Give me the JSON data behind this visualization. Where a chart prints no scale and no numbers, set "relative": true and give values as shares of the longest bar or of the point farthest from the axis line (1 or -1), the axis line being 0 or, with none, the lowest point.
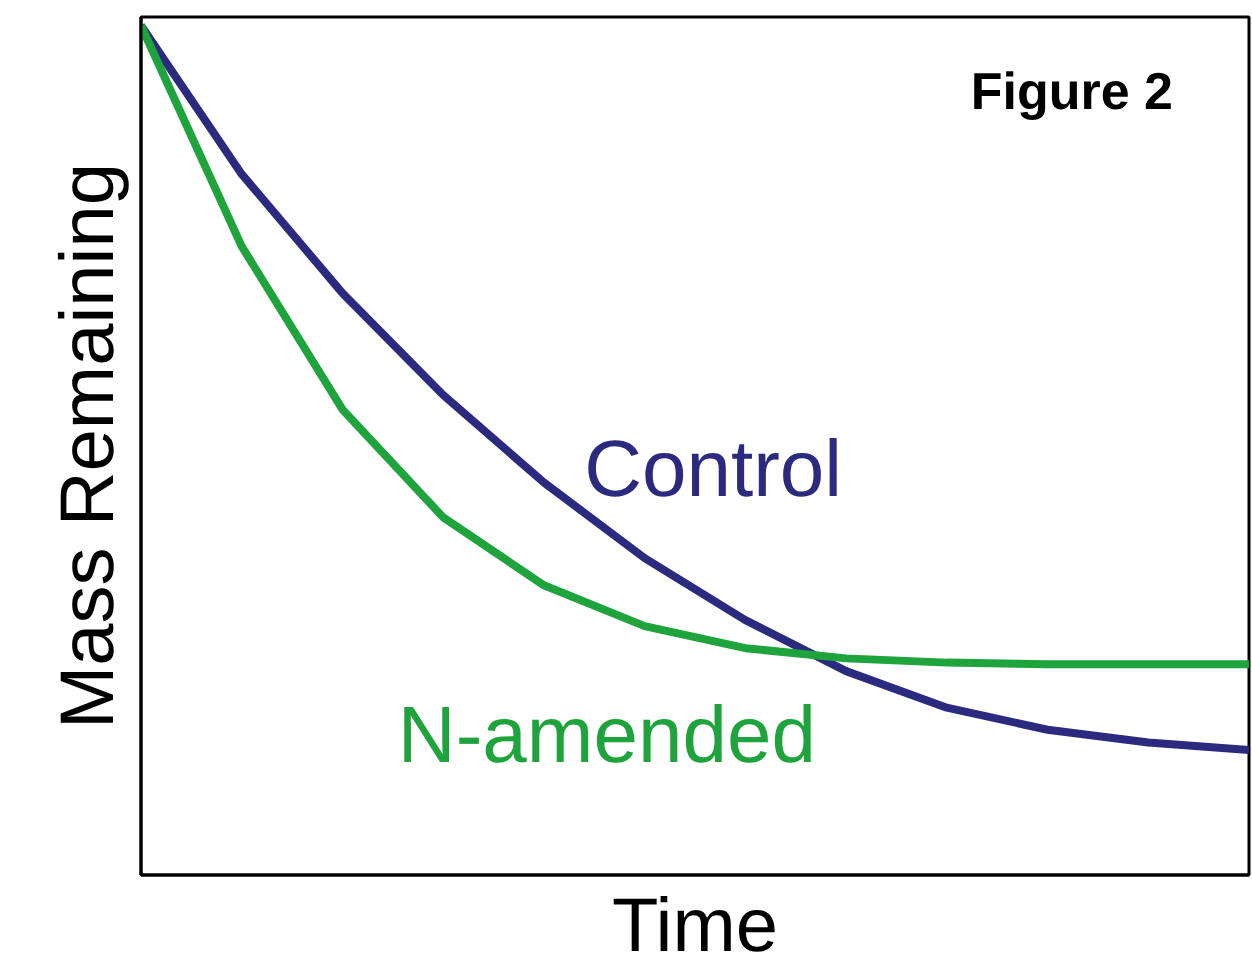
{
  "chart_data": {
    "type": "line",
    "title": "Figure 2",
    "xlabel": "Time",
    "ylabel": "Mass Remaining",
    "relative": true,
    "categories": [
      null,
      null,
      null,
      null,
      null,
      null,
      null,
      null,
      null,
      null,
      null,
      null
    ],
    "series": [
      {
        "name": "Control",
        "color": "#2b2a7e",
        "values": [
          1,
          0.825,
          0.685,
          0.565,
          0.462,
          0.373,
          0.3,
          0.24,
          0.197,
          0.171,
          0.156,
          0.147
        ]
      },
      {
        "name": "N-amended",
        "color": "#1fa33c",
        "values": [
          1,
          0.74,
          0.548,
          0.421,
          0.341,
          0.293,
          0.267,
          0.255,
          0.25,
          0.248,
          0.248,
          0.248
        ]
      }
    ],
    "marker": "none",
    "line_style": "solid"
  }
}
